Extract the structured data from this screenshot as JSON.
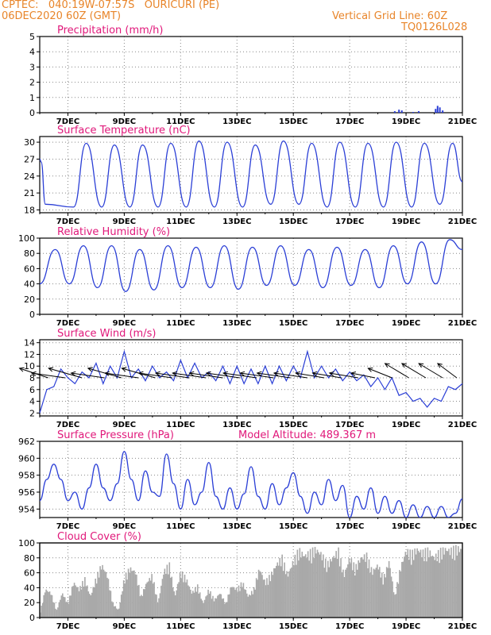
{
  "header": {
    "station": "CPTEC:   040:19W-07:57S   OURICURI (PE)",
    "date": "06DEC2020 60Z (GMT)",
    "grid_note": "Vertical Grid Line: 60Z",
    "model": "TQ0126L028"
  },
  "colors": {
    "header": "#e8852a",
    "title": "#e0187a",
    "series": "#2b3fd6",
    "cloud": "#a9a9a9",
    "wind": "#000000"
  },
  "chart_data": [
    {
      "type": "bar",
      "title": "Precipitation (mm/h)",
      "x_ticks": [
        "7DEC",
        "9DEC",
        "11DEC",
        "13DEC",
        "15DEC",
        "17DEC",
        "19DEC",
        "21DEC"
      ],
      "y_ticks": [
        "0",
        "1",
        "2",
        "3",
        "4",
        "5"
      ],
      "ylim": [
        0,
        5
      ],
      "grid": true,
      "events": [
        {
          "day": 18.6,
          "value": 0.1
        },
        {
          "day": 18.75,
          "value": 0.2
        },
        {
          "day": 18.85,
          "value": 0.15
        },
        {
          "day": 19.25,
          "value": 0.05
        },
        {
          "day": 19.45,
          "value": 0.1
        },
        {
          "day": 20.05,
          "value": 0.25
        },
        {
          "day": 20.12,
          "value": 0.45
        },
        {
          "day": 20.2,
          "value": 0.35
        },
        {
          "day": 20.3,
          "value": 0.15
        }
      ]
    },
    {
      "type": "line",
      "title": "Surface Temperature (nC)",
      "x_ticks": [
        "7DEC",
        "9DEC",
        "11DEC",
        "13DEC",
        "15DEC",
        "17DEC",
        "19DEC",
        "21DEC"
      ],
      "y_ticks": [
        "18",
        "21",
        "24",
        "27",
        "30"
      ],
      "ylim": [
        17.5,
        31
      ],
      "grid": true,
      "daily_max": [
        26.5,
        29.8,
        29.5,
        29.5,
        29.8,
        30.2,
        30.0,
        29.5,
        30.2,
        29.8,
        30.0,
        29.8,
        30.0,
        29.8,
        29.8,
        27.5
      ],
      "daily_min": [
        19.0,
        18.5,
        18.5,
        18.5,
        18.5,
        18.5,
        18.5,
        18.5,
        19.0,
        19.0,
        18.5,
        18.5,
        18.5,
        18.5,
        19.0
      ]
    },
    {
      "type": "line",
      "title": "Relative Humidity (%)",
      "x_ticks": [
        "7DEC",
        "9DEC",
        "11DEC",
        "13DEC",
        "15DEC",
        "17DEC",
        "19DEC",
        "21DEC"
      ],
      "y_ticks": [
        "0",
        "20",
        "40",
        "60",
        "80",
        "100"
      ],
      "ylim": [
        0,
        100
      ],
      "grid": true,
      "daily_max": [
        85,
        90,
        90,
        85,
        90,
        88,
        90,
        88,
        90,
        85,
        88,
        85,
        90,
        95,
        98,
        97
      ],
      "daily_min": [
        40,
        35,
        30,
        32,
        35,
        35,
        33,
        38,
        38,
        35,
        38,
        35,
        40,
        40,
        38,
        42
      ]
    },
    {
      "type": "line",
      "title": "Surface Wind (m/s)",
      "x_ticks": [
        "7DEC",
        "9DEC",
        "11DEC",
        "13DEC",
        "15DEC",
        "17DEC",
        "19DEC",
        "21DEC"
      ],
      "y_ticks": [
        "2",
        "4",
        "6",
        "8",
        "10",
        "12",
        "14"
      ],
      "ylim": [
        1.5,
        14.5
      ],
      "grid": true,
      "speed_points": [
        [
          6.0,
          2.0
        ],
        [
          6.25,
          6.0
        ],
        [
          6.5,
          6.5
        ],
        [
          6.75,
          9.5
        ],
        [
          7.0,
          8.0
        ],
        [
          7.25,
          7.0
        ],
        [
          7.5,
          9.0
        ],
        [
          7.75,
          8.0
        ],
        [
          8.0,
          10.5
        ],
        [
          8.25,
          7.0
        ],
        [
          8.5,
          10.0
        ],
        [
          8.75,
          8.0
        ],
        [
          9.0,
          12.5
        ],
        [
          9.25,
          8.0
        ],
        [
          9.5,
          9.5
        ],
        [
          9.75,
          7.5
        ],
        [
          10.0,
          10.0
        ],
        [
          10.25,
          8.0
        ],
        [
          10.5,
          9.0
        ],
        [
          10.75,
          7.5
        ],
        [
          11.0,
          11.0
        ],
        [
          11.25,
          8.0
        ],
        [
          11.5,
          10.5
        ],
        [
          11.75,
          8.0
        ],
        [
          12.0,
          9.0
        ],
        [
          12.25,
          7.5
        ],
        [
          12.5,
          10.0
        ],
        [
          12.75,
          7.0
        ],
        [
          13.0,
          10.0
        ],
        [
          13.25,
          7.0
        ],
        [
          13.5,
          9.5
        ],
        [
          13.75,
          7.0
        ],
        [
          14.0,
          10.0
        ],
        [
          14.25,
          7.0
        ],
        [
          14.5,
          10.0
        ],
        [
          14.75,
          7.5
        ],
        [
          15.0,
          10.0
        ],
        [
          15.25,
          8.0
        ],
        [
          15.5,
          12.5
        ],
        [
          15.75,
          8.0
        ],
        [
          16.0,
          10.0
        ],
        [
          16.25,
          8.0
        ],
        [
          16.5,
          9.5
        ],
        [
          16.75,
          7.5
        ],
        [
          17.0,
          9.0
        ],
        [
          17.25,
          7.5
        ],
        [
          17.5,
          8.5
        ],
        [
          17.75,
          6.5
        ],
        [
          18.0,
          8.0
        ],
        [
          18.25,
          6.0
        ],
        [
          18.5,
          8.0
        ],
        [
          18.75,
          5.0
        ],
        [
          19.0,
          5.5
        ],
        [
          19.25,
          4.0
        ],
        [
          19.5,
          4.5
        ],
        [
          19.75,
          3.0
        ],
        [
          20.0,
          4.5
        ],
        [
          20.25,
          4.0
        ],
        [
          20.5,
          6.5
        ],
        [
          20.75,
          6.0
        ],
        [
          21.0,
          7.0
        ]
      ],
      "wind_arrows": [
        {
          "day": 6.3,
          "u": -6,
          "v": 2
        },
        {
          "day": 6.9,
          "u": -7,
          "v": 1
        },
        {
          "day": 7.5,
          "u": -7,
          "v": 2
        },
        {
          "day": 8.3,
          "u": -7,
          "v": 1
        },
        {
          "day": 8.9,
          "u": -7,
          "v": 2
        },
        {
          "day": 9.5,
          "u": -7,
          "v": 1
        },
        {
          "day": 10.1,
          "u": -7,
          "v": 2
        },
        {
          "day": 10.7,
          "u": -7,
          "v": 1
        },
        {
          "day": 11.3,
          "u": -7,
          "v": 1
        },
        {
          "day": 11.9,
          "u": -7,
          "v": 1
        },
        {
          "day": 12.5,
          "u": -7,
          "v": 1
        },
        {
          "day": 13.1,
          "u": -7,
          "v": 1
        },
        {
          "day": 13.7,
          "u": -7,
          "v": 1
        },
        {
          "day": 14.3,
          "u": -7,
          "v": 1
        },
        {
          "day": 14.9,
          "u": -7,
          "v": 1
        },
        {
          "day": 15.5,
          "u": -7,
          "v": 1
        },
        {
          "day": 16.1,
          "u": -6,
          "v": 1
        },
        {
          "day": 16.7,
          "u": -6,
          "v": 1
        },
        {
          "day": 17.3,
          "u": -6,
          "v": 1
        },
        {
          "day": 17.9,
          "u": -5,
          "v": 1
        },
        {
          "day": 18.5,
          "u": -5,
          "v": 2
        },
        {
          "day": 19.1,
          "u": -5,
          "v": 3
        },
        {
          "day": 19.7,
          "u": -5,
          "v": 3
        },
        {
          "day": 20.3,
          "u": -5,
          "v": 3
        },
        {
          "day": 20.8,
          "u": -4,
          "v": 3
        }
      ]
    },
    {
      "type": "line",
      "title": "Surface Pressure (hPa)",
      "annotation": "Model Altitude: 489.367 m",
      "x_ticks": [
        "7DEC",
        "9DEC",
        "11DEC",
        "13DEC",
        "15DEC",
        "17DEC",
        "19DEC",
        "21DEC"
      ],
      "y_ticks": [
        "954",
        "956",
        "958",
        "960",
        "962"
      ],
      "ylim": [
        953.0,
        962.0
      ],
      "grid": true,
      "points": [
        [
          6.0,
          955.0
        ],
        [
          6.25,
          957.5
        ],
        [
          6.5,
          959.3
        ],
        [
          6.75,
          957.5
        ],
        [
          7.0,
          955.0
        ],
        [
          7.25,
          956.0
        ],
        [
          7.5,
          954.0
        ],
        [
          7.75,
          956.5
        ],
        [
          8.0,
          959.3
        ],
        [
          8.25,
          956.5
        ],
        [
          8.5,
          955.0
        ],
        [
          8.75,
          957.0
        ],
        [
          9.0,
          960.8
        ],
        [
          9.25,
          957.5
        ],
        [
          9.5,
          955.0
        ],
        [
          9.75,
          958.5
        ],
        [
          10.0,
          956.0
        ],
        [
          10.25,
          955.5
        ],
        [
          10.5,
          960.5
        ],
        [
          10.75,
          957.0
        ],
        [
          11.0,
          954.0
        ],
        [
          11.25,
          957.5
        ],
        [
          11.5,
          954.5
        ],
        [
          11.75,
          956.0
        ],
        [
          12.0,
          959.5
        ],
        [
          12.25,
          955.5
        ],
        [
          12.5,
          954.0
        ],
        [
          12.75,
          956.5
        ],
        [
          13.0,
          954.0
        ],
        [
          13.25,
          955.8
        ],
        [
          13.5,
          959.0
        ],
        [
          13.75,
          955.5
        ],
        [
          14.0,
          954.0
        ],
        [
          14.25,
          957.0
        ],
        [
          14.5,
          954.5
        ],
        [
          14.75,
          956.5
        ],
        [
          15.0,
          958.3
        ],
        [
          15.25,
          955.5
        ],
        [
          15.5,
          953.5
        ],
        [
          15.75,
          956.0
        ],
        [
          16.0,
          954.5
        ],
        [
          16.25,
          957.5
        ],
        [
          16.5,
          955.0
        ],
        [
          16.75,
          956.8
        ],
        [
          17.0,
          953.0
        ],
        [
          17.25,
          955.5
        ],
        [
          17.5,
          954.0
        ],
        [
          17.75,
          956.5
        ],
        [
          18.0,
          953.5
        ],
        [
          18.25,
          955.5
        ],
        [
          18.5,
          953.5
        ],
        [
          18.75,
          955.0
        ],
        [
          19.0,
          953.0
        ],
        [
          19.25,
          954.5
        ],
        [
          19.5,
          953.0
        ],
        [
          19.75,
          954.3
        ],
        [
          20.0,
          953.0
        ],
        [
          20.25,
          954.3
        ],
        [
          20.5,
          953.0
        ],
        [
          20.75,
          953.5
        ],
        [
          21.0,
          955.2
        ]
      ]
    },
    {
      "type": "area",
      "title": "Cloud Cover (%)",
      "x_ticks": [
        "7DEC",
        "9DEC",
        "11DEC",
        "13DEC",
        "15DEC",
        "17DEC",
        "19DEC",
        "21DEC"
      ],
      "y_ticks": [
        "0",
        "20",
        "40",
        "60",
        "80",
        "100"
      ],
      "ylim": [
        0,
        100
      ],
      "grid": true,
      "points": [
        [
          6.0,
          5
        ],
        [
          6.2,
          40
        ],
        [
          6.4,
          35
        ],
        [
          6.6,
          10
        ],
        [
          6.8,
          35
        ],
        [
          7.0,
          20
        ],
        [
          7.2,
          50
        ],
        [
          7.4,
          40
        ],
        [
          7.6,
          55
        ],
        [
          7.8,
          30
        ],
        [
          8.0,
          55
        ],
        [
          8.2,
          75
        ],
        [
          8.4,
          60
        ],
        [
          8.6,
          20
        ],
        [
          8.8,
          10
        ],
        [
          9.0,
          55
        ],
        [
          9.2,
          70
        ],
        [
          9.4,
          65
        ],
        [
          9.6,
          30
        ],
        [
          9.8,
          50
        ],
        [
          10.0,
          60
        ],
        [
          10.2,
          20
        ],
        [
          10.4,
          65
        ],
        [
          10.6,
          75
        ],
        [
          10.8,
          30
        ],
        [
          11.0,
          65
        ],
        [
          11.2,
          55
        ],
        [
          11.4,
          35
        ],
        [
          11.6,
          45
        ],
        [
          11.8,
          20
        ],
        [
          12.0,
          40
        ],
        [
          12.2,
          25
        ],
        [
          12.4,
          35
        ],
        [
          12.6,
          20
        ],
        [
          12.8,
          45
        ],
        [
          13.0,
          40
        ],
        [
          13.2,
          50
        ],
        [
          13.4,
          30
        ],
        [
          13.6,
          40
        ],
        [
          13.8,
          70
        ],
        [
          14.0,
          50
        ],
        [
          14.2,
          60
        ],
        [
          14.4,
          75
        ],
        [
          14.6,
          85
        ],
        [
          14.8,
          60
        ],
        [
          15.0,
          80
        ],
        [
          15.2,
          95
        ],
        [
          15.4,
          88
        ],
        [
          15.6,
          92
        ],
        [
          15.8,
          97
        ],
        [
          16.0,
          90
        ],
        [
          16.2,
          75
        ],
        [
          16.4,
          85
        ],
        [
          16.6,
          95
        ],
        [
          16.8,
          60
        ],
        [
          17.0,
          85
        ],
        [
          17.2,
          70
        ],
        [
          17.4,
          85
        ],
        [
          17.6,
          88
        ],
        [
          17.8,
          65
        ],
        [
          18.0,
          75
        ],
        [
          18.2,
          55
        ],
        [
          18.4,
          80
        ],
        [
          18.6,
          30
        ],
        [
          18.8,
          70
        ],
        [
          19.0,
          95
        ],
        [
          19.2,
          90
        ],
        [
          19.4,
          97
        ],
        [
          19.6,
          92
        ],
        [
          19.8,
          95
        ],
        [
          20.0,
          85
        ],
        [
          20.2,
          93
        ],
        [
          20.4,
          97
        ],
        [
          20.6,
          95
        ],
        [
          20.8,
          98
        ],
        [
          21.0,
          97
        ]
      ]
    }
  ]
}
